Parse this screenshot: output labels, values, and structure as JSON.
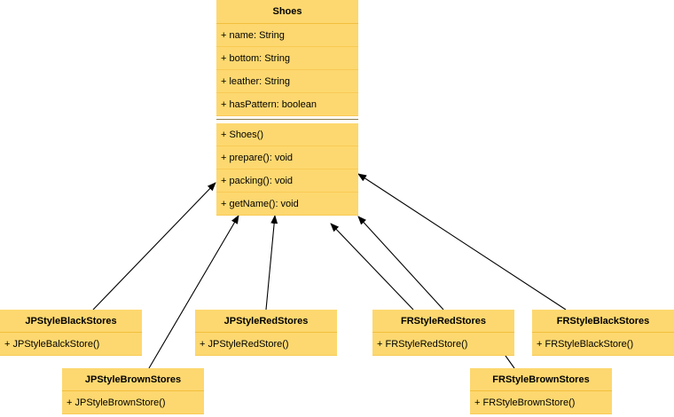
{
  "shoes": {
    "name": "Shoes",
    "attributes": [
      "+ name: String",
      "+ bottom: String",
      "+ leather: String",
      "+ hasPattern: boolean"
    ],
    "methods": [
      "+ Shoes()",
      "+ prepare(): void",
      "+ packing(): void",
      "+ getName(): void"
    ]
  },
  "jp_black": {
    "name": "JPStyleBlackStores",
    "method": "+ JPStyleBalckStore()"
  },
  "jp_brown": {
    "name": "JPStyleBrownStores",
    "method": "+ JPStyleBrownStore()"
  },
  "jp_red": {
    "name": "JPStyleRedStores",
    "method": "+ JPStyleRedStore()"
  },
  "fr_red": {
    "name": "FRStyleRedStores",
    "method": "+ FRStyleRedStore()"
  },
  "fr_black": {
    "name": "FRStyleBlackStores",
    "method": "+ FRStyleBlackStore()"
  },
  "fr_brown": {
    "name": "FRStyleBrownStores",
    "method": "+ FRStyleBrownStore()"
  },
  "colors": {
    "fill": "#fdd870",
    "border": "#f2bf3c"
  }
}
